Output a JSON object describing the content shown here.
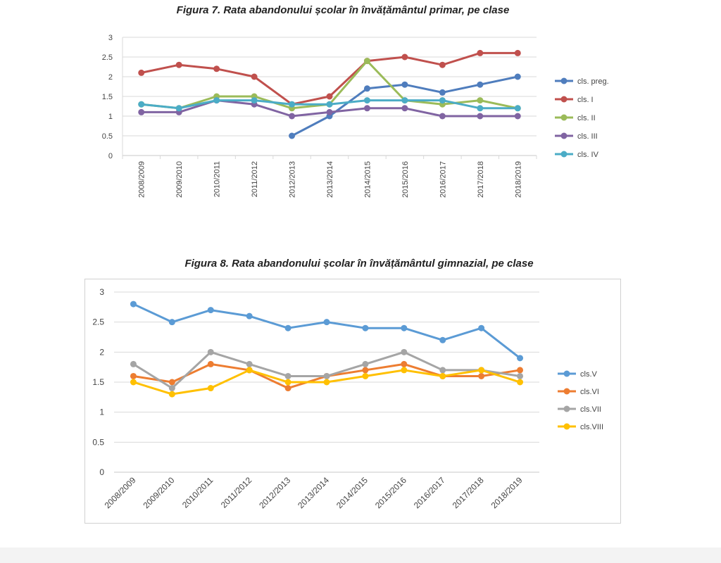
{
  "figures": [
    {
      "title": "Figura 7. Rata abandonului școlar în învățământul primar, pe clase"
    },
    {
      "title": "Figura 8. Rata abandonului școlar în învățământul gimnazial, pe clase"
    }
  ],
  "chart_data": [
    {
      "type": "line",
      "title": "Figura 7. Rata abandonului școlar în învățământul primar, pe clase",
      "categories": [
        "2008/2009",
        "2009/2010",
        "2010/2011",
        "2011/2012",
        "2012/2013",
        "2013/2014",
        "2014/2015",
        "2015/2016",
        "2016/2017",
        "2017/2018",
        "2018/2019"
      ],
      "ylim": [
        0,
        3
      ],
      "yticks": [
        "0",
        "0.5",
        "1",
        "1.5",
        "2",
        "2.5",
        "3"
      ],
      "grid": true,
      "legend_position": "right",
      "series": [
        {
          "name": "cls. preg.",
          "color": "#4f7dbd",
          "values": [
            null,
            null,
            null,
            null,
            0.5,
            1.0,
            1.7,
            1.8,
            1.6,
            1.8,
            2.0
          ]
        },
        {
          "name": "cls. I",
          "color": "#c0504d",
          "values": [
            2.1,
            2.3,
            2.2,
            2.0,
            1.3,
            1.5,
            2.4,
            2.5,
            2.3,
            2.6,
            2.6
          ]
        },
        {
          "name": "cls. II",
          "color": "#9bbb59",
          "values": [
            1.3,
            1.2,
            1.5,
            1.5,
            1.2,
            1.3,
            2.4,
            1.4,
            1.3,
            1.4,
            1.2
          ]
        },
        {
          "name": "cls. III",
          "color": "#8064a2",
          "values": [
            1.1,
            1.1,
            1.4,
            1.3,
            1.0,
            1.1,
            1.2,
            1.2,
            1.0,
            1.0,
            1.0
          ]
        },
        {
          "name": "cls. IV",
          "color": "#4bacc6",
          "values": [
            1.3,
            1.2,
            1.4,
            1.4,
            1.3,
            1.3,
            1.4,
            1.4,
            1.4,
            1.2,
            1.2
          ]
        }
      ]
    },
    {
      "type": "line",
      "title": "Figura 8. Rata abandonului școlar în învățământul gimnazial, pe clase",
      "categories": [
        "2008/2009",
        "2009/2010",
        "2010/2011",
        "2011/2012",
        "2012/2013",
        "2013/2014",
        "2014/2015",
        "2015/2016",
        "2016/2017",
        "2017/2018",
        "2018/2019"
      ],
      "ylim": [
        0,
        3
      ],
      "yticks": [
        "0",
        "0.5",
        "1",
        "1.5",
        "2",
        "2.5",
        "3"
      ],
      "grid": true,
      "legend_position": "right",
      "series": [
        {
          "name": "cls.V",
          "color": "#5b9bd5",
          "values": [
            2.8,
            2.5,
            2.7,
            2.6,
            2.4,
            2.5,
            2.4,
            2.4,
            2.2,
            2.4,
            1.9
          ]
        },
        {
          "name": "cls.VI",
          "color": "#ed7d31",
          "values": [
            1.6,
            1.5,
            1.8,
            1.7,
            1.4,
            1.6,
            1.7,
            1.8,
            1.6,
            1.6,
            1.7
          ]
        },
        {
          "name": "cls.VII",
          "color": "#a5a5a5",
          "values": [
            1.8,
            1.4,
            2.0,
            1.8,
            1.6,
            1.6,
            1.8,
            2.0,
            1.7,
            1.7,
            1.6
          ]
        },
        {
          "name": "cls.VIII",
          "color": "#ffc000",
          "values": [
            1.5,
            1.3,
            1.4,
            1.7,
            1.5,
            1.5,
            1.6,
            1.7,
            1.6,
            1.7,
            1.5
          ]
        }
      ]
    }
  ]
}
